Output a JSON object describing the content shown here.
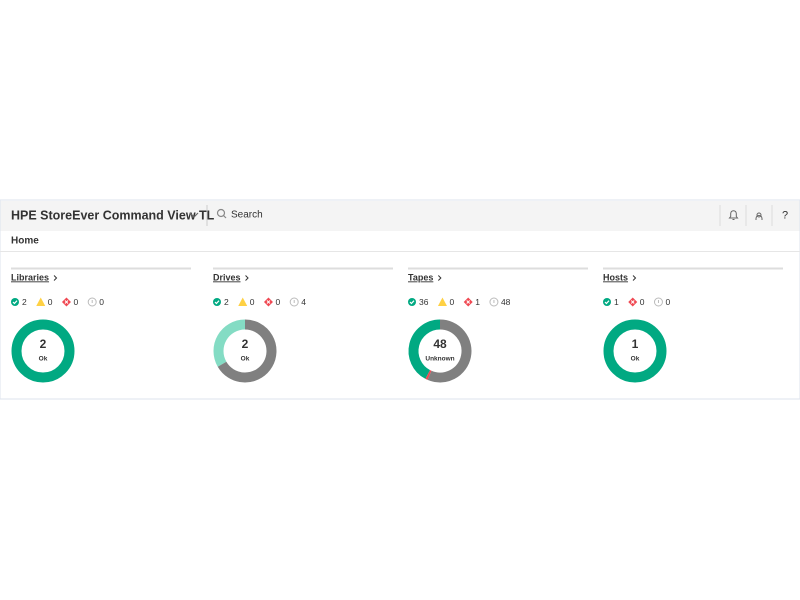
{
  "header": {
    "title": "HPE StoreEver Command View TL",
    "search_placeholder": "Search"
  },
  "breadcrumb": "Home",
  "panels": [
    {
      "title": "Libraries",
      "counts": {
        "ok": 2,
        "warning": 0,
        "critical": 0,
        "unknown": 0
      },
      "center_value": 2,
      "center_label": "Ok",
      "center_color": "#01a982",
      "ring_colors": {
        "ok": "#01a982",
        "warning": "#ffd144",
        "critical": "#f04953",
        "unknown": "#808080"
      }
    },
    {
      "title": "Drives",
      "counts": {
        "ok": 2,
        "warning": 0,
        "critical": 0,
        "unknown": 4
      },
      "center_value": 2,
      "center_label": "Ok",
      "center_color": "#01a982",
      "ring_colors": {
        "ok": "#84dcc4",
        "warning": "#ffd144",
        "critical": "#f04953",
        "unknown": "#808080"
      }
    },
    {
      "title": "Tapes",
      "counts": {
        "ok": 36,
        "warning": 0,
        "critical": 1,
        "unknown": 48
      },
      "center_value": 48,
      "center_label": "Unknown",
      "center_color": "#808080",
      "ring_colors": {
        "ok": "#01a982",
        "warning": "#ffd144",
        "critical": "#f04953",
        "unknown": "#808080"
      }
    },
    {
      "title": "Hosts",
      "counts": {
        "ok": 1,
        "critical": 0,
        "unknown": 0
      },
      "center_value": 1,
      "center_label": "Ok",
      "center_color": "#01a982",
      "ring_colors": {
        "ok": "#01a982",
        "warning": "#ffd144",
        "critical": "#f04953",
        "unknown": "#808080"
      }
    }
  ]
}
